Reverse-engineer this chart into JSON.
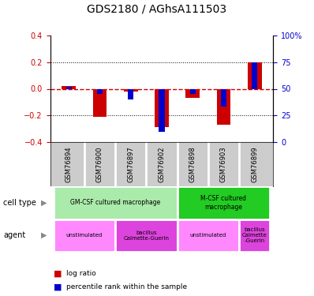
{
  "title": "GDS2180 / AGhsA111503",
  "samples": [
    "GSM76894",
    "GSM76900",
    "GSM76897",
    "GSM76902",
    "GSM76898",
    "GSM76903",
    "GSM76899"
  ],
  "log_ratio": [
    0.02,
    -0.21,
    -0.02,
    -0.29,
    -0.07,
    -0.27,
    0.2
  ],
  "percentile_rank": [
    52,
    45,
    40,
    10,
    45,
    33,
    75
  ],
  "ylim_left": [
    -0.4,
    0.4
  ],
  "ylim_right": [
    0,
    100
  ],
  "yticks_left": [
    -0.4,
    -0.2,
    0.0,
    0.2,
    0.4
  ],
  "yticks_right": [
    0,
    25,
    50,
    75,
    100
  ],
  "cell_type_groups": [
    {
      "label": "GM-CSF cultured macrophage",
      "span": [
        0,
        4
      ],
      "color": "#AAEAAA"
    },
    {
      "label": "M-CSF cultured\nmacrophage",
      "span": [
        4,
        7
      ],
      "color": "#22CC22"
    }
  ],
  "agent_groups": [
    {
      "label": "unstimulated",
      "span": [
        0,
        2
      ],
      "color": "#FF88FF"
    },
    {
      "label": "bacillus\nCalmette-Guerin",
      "span": [
        2,
        4
      ],
      "color": "#DD44DD"
    },
    {
      "label": "unstimulated",
      "span": [
        4,
        6
      ],
      "color": "#FF88FF"
    },
    {
      "label": "bacillus\nCalmette\n-Guerin",
      "span": [
        6,
        7
      ],
      "color": "#DD44DD"
    }
  ],
  "bar_color_red": "#CC0000",
  "bar_color_blue": "#0000CC",
  "zero_line_color": "#CC0000",
  "dotted_line_color": "#000000",
  "tick_label_color_left": "#CC0000",
  "tick_label_color_right": "#0000CC",
  "bg_plot": "#FFFFFF",
  "bg_sample_header": "#CCCCCC"
}
